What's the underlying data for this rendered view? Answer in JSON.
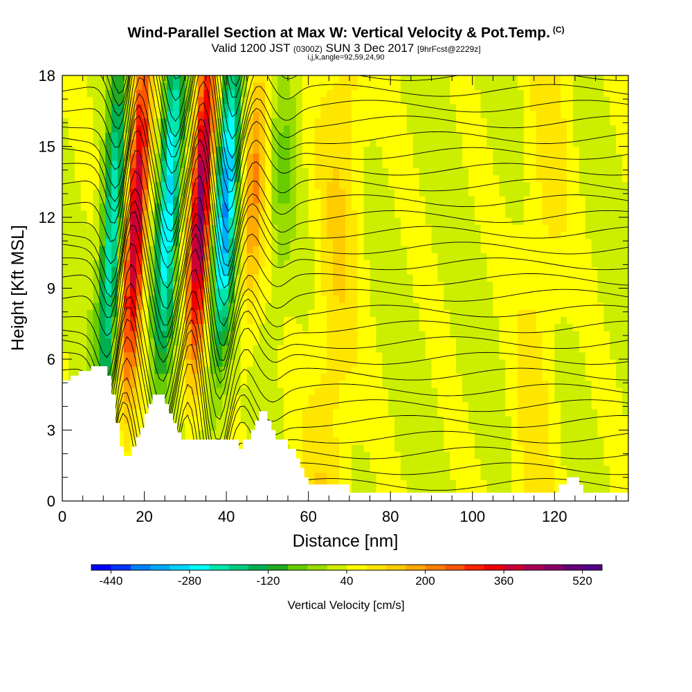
{
  "header": {
    "title": "Wind-Parallel Section at Max W: Vertical Velocity & Pot.Temp.",
    "copyright": "(C)",
    "valid_prefix": "Valid 1200 JST",
    "valid_utc": "(0300Z)",
    "valid_date": "SUN 3 Dec 2017",
    "forecast": "[9hrFcst@2229z]",
    "indices": "i,j,k,angle=92,59,24,90"
  },
  "chart_data": {
    "type": "heatmap",
    "xlabel": "Distance [nm]",
    "ylabel": "Height [Kft MSL]",
    "xlim": [
      0,
      138
    ],
    "ylim": [
      0,
      18
    ],
    "x_ticks": [
      0,
      20,
      40,
      60,
      80,
      100,
      120
    ],
    "y_ticks": [
      0,
      3,
      6,
      9,
      12,
      15,
      18
    ],
    "colorbar": {
      "label": "Vertical Velocity [cm/s]",
      "min": -480,
      "max": 560,
      "step": 40,
      "tick_values": [
        -440,
        -280,
        -120,
        40,
        200,
        360,
        520
      ],
      "tick_labels": [
        "-440",
        "-280",
        "-120",
        "40",
        "200",
        "360",
        "520"
      ],
      "colors": [
        "#0000ff",
        "#0033ff",
        "#0080ff",
        "#00aaff",
        "#00d4ff",
        "#00ffff",
        "#00e6b0",
        "#00cc80",
        "#00b050",
        "#22aa22",
        "#66cc00",
        "#99dd00",
        "#ccee00",
        "#ffff00",
        "#ffe600",
        "#ffcc00",
        "#ffaa00",
        "#ff8000",
        "#ff5500",
        "#ff2200",
        "#ee0000",
        "#cc0033",
        "#aa0055",
        "#880066",
        "#660077",
        "#550088"
      ]
    },
    "velocity_bands": [
      {
        "center_x": 12,
        "center_y": 11,
        "value": -280
      },
      {
        "center_x": 18,
        "center_y": 12,
        "value": 400
      },
      {
        "center_x": 26,
        "center_y": 13,
        "value": -340
      },
      {
        "center_x": 34,
        "center_y": 13,
        "value": 440
      },
      {
        "center_x": 40,
        "center_y": 13,
        "value": -380
      },
      {
        "center_x": 47,
        "center_y": 14,
        "value": 160
      },
      {
        "center_x": 54,
        "center_y": 14,
        "value": -60
      },
      {
        "center_x": 68,
        "center_y": 14,
        "value": 80
      },
      {
        "center_x": 92,
        "center_y": 14,
        "value": 0
      },
      {
        "center_x": 118,
        "center_y": 14,
        "value": 60
      }
    ],
    "terrain_profile": [
      {
        "x": 0,
        "y": 5.1
      },
      {
        "x": 2,
        "y": 5.1
      },
      {
        "x": 2,
        "y": 5.3
      },
      {
        "x": 4,
        "y": 5.3
      },
      {
        "x": 4,
        "y": 5.5
      },
      {
        "x": 7,
        "y": 5.5
      },
      {
        "x": 7,
        "y": 5.7
      },
      {
        "x": 11,
        "y": 5.7
      },
      {
        "x": 11,
        "y": 5.3
      },
      {
        "x": 12,
        "y": 5.3
      },
      {
        "x": 12,
        "y": 4.5
      },
      {
        "x": 13,
        "y": 4.5
      },
      {
        "x": 13,
        "y": 3.3
      },
      {
        "x": 14,
        "y": 3.3
      },
      {
        "x": 14,
        "y": 2.3
      },
      {
        "x": 15,
        "y": 2.3
      },
      {
        "x": 15,
        "y": 1.9
      },
      {
        "x": 17,
        "y": 1.9
      },
      {
        "x": 17,
        "y": 2.3
      },
      {
        "x": 18,
        "y": 2.3
      },
      {
        "x": 18,
        "y": 2.7
      },
      {
        "x": 19,
        "y": 2.7
      },
      {
        "x": 19,
        "y": 3.1
      },
      {
        "x": 20,
        "y": 3.1
      },
      {
        "x": 20,
        "y": 3.7
      },
      {
        "x": 21,
        "y": 3.7
      },
      {
        "x": 21,
        "y": 4.1
      },
      {
        "x": 22,
        "y": 4.1
      },
      {
        "x": 22,
        "y": 4.5
      },
      {
        "x": 25,
        "y": 4.5
      },
      {
        "x": 25,
        "y": 4.1
      },
      {
        "x": 26,
        "y": 4.1
      },
      {
        "x": 26,
        "y": 3.7
      },
      {
        "x": 27,
        "y": 3.7
      },
      {
        "x": 27,
        "y": 3.3
      },
      {
        "x": 28,
        "y": 3.3
      },
      {
        "x": 28,
        "y": 2.9
      },
      {
        "x": 29,
        "y": 2.9
      },
      {
        "x": 29,
        "y": 2.6
      },
      {
        "x": 43,
        "y": 2.6
      },
      {
        "x": 43,
        "y": 2.2
      },
      {
        "x": 44,
        "y": 2.2
      },
      {
        "x": 44,
        "y": 2.6
      },
      {
        "x": 46,
        "y": 2.6
      },
      {
        "x": 46,
        "y": 3.0
      },
      {
        "x": 47,
        "y": 3.0
      },
      {
        "x": 47,
        "y": 3.4
      },
      {
        "x": 48,
        "y": 3.4
      },
      {
        "x": 48,
        "y": 3.8
      },
      {
        "x": 50,
        "y": 3.8
      },
      {
        "x": 50,
        "y": 3.4
      },
      {
        "x": 51,
        "y": 3.4
      },
      {
        "x": 51,
        "y": 3.0
      },
      {
        "x": 52,
        "y": 3.0
      },
      {
        "x": 52,
        "y": 2.6
      },
      {
        "x": 55,
        "y": 2.6
      },
      {
        "x": 55,
        "y": 2.2
      },
      {
        "x": 57,
        "y": 2.2
      },
      {
        "x": 57,
        "y": 1.8
      },
      {
        "x": 58,
        "y": 1.8
      },
      {
        "x": 58,
        "y": 1.4
      },
      {
        "x": 59,
        "y": 1.4
      },
      {
        "x": 59,
        "y": 1.0
      },
      {
        "x": 60,
        "y": 1.0
      },
      {
        "x": 60,
        "y": 0.7
      },
      {
        "x": 70,
        "y": 0.7
      },
      {
        "x": 70,
        "y": 0.35
      },
      {
        "x": 121,
        "y": 0.35
      },
      {
        "x": 121,
        "y": 0.7
      },
      {
        "x": 123,
        "y": 0.7
      },
      {
        "x": 123,
        "y": 1.0
      },
      {
        "x": 126,
        "y": 1.0
      },
      {
        "x": 126,
        "y": 0.7
      },
      {
        "x": 127,
        "y": 0.7
      },
      {
        "x": 127,
        "y": 0.35
      },
      {
        "x": 138,
        "y": 0.35
      }
    ],
    "contour_levels": 30,
    "grid": false
  }
}
